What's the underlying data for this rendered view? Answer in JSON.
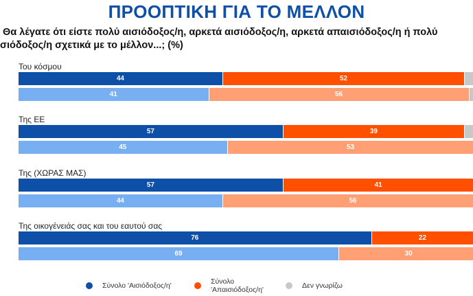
{
  "title": "ΠΡΟΟΠΤΙΚΗ ΓΙΑ ΤΟ ΜΕΛΛΟΝ",
  "question_line1": ". Θα λέγατε ότι είστε πολύ αισιόδοξος/η, αρκετά αισιόδοξος/η, αρκετά απαισιόδοξος/η ή πολύ",
  "question_line2": "ισιόδοξος/η σχετικά με το μέλλον...; (%)",
  "chart_data": {
    "type": "bar",
    "orientation": "horizontal",
    "stacked": true,
    "xlim": [
      0,
      100
    ],
    "legend": [
      "Σύνολο 'Αισιόδοξος/η'",
      "Σύνολο 'Απαισιόδοξος/η'",
      "Δεν γνωρίζω"
    ],
    "legend_placement": "bottom",
    "colors": {
      "opt_dark": "#0e4fa8",
      "pes_dark": "#ff5000",
      "opt_light": "#78aef2",
      "pes_light": "#ff9f73",
      "dk": "#c8c8c8"
    },
    "groups": [
      {
        "label": "Του κόσμου",
        "rows": [
          {
            "values": [
              44,
              52,
              4
            ]
          },
          {
            "values": [
              41,
              56,
              3
            ]
          }
        ]
      },
      {
        "label": "Της ΕΕ",
        "rows": [
          {
            "values": [
              57,
              39,
              4
            ]
          },
          {
            "values": [
              45,
              53,
              2
            ]
          }
        ]
      },
      {
        "label": "Της (ΧΩΡΑΣ ΜΑΣ)",
        "rows": [
          {
            "values": [
              57,
              41,
              2
            ]
          },
          {
            "values": [
              44,
              56,
              0
            ]
          }
        ]
      },
      {
        "label": "Της οικογένειάς σας και του εαυτού σας",
        "rows": [
          {
            "values": [
              76,
              22,
              2
            ]
          },
          {
            "values": [
              69,
              30,
              1
            ]
          }
        ]
      }
    ]
  }
}
